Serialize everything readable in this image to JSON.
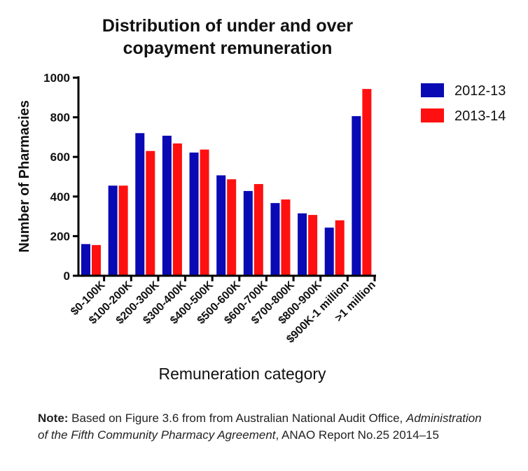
{
  "chart_data": {
    "type": "bar",
    "title_line1": "Distribution of under and over",
    "title_line2": "copayment remuneration",
    "xlabel": "Remuneration category",
    "ylabel": "Number of Pharmacies",
    "ylim": [
      0,
      1000
    ],
    "yticks": [
      "0",
      "200",
      "400",
      "600",
      "800",
      "1000"
    ],
    "categories": [
      "$0-100K",
      "$100-200K",
      "$200-300K",
      "$300-400K",
      "$400-500K",
      "$500-600K",
      "$600-700K",
      "$700-800K",
      "$800-900K",
      "$900K-1 million",
      ">1 million"
    ],
    "series": [
      {
        "name": "2012-13",
        "color": "#0a0ab4",
        "values": [
          160,
          455,
          720,
          707,
          622,
          507,
          428,
          367,
          315,
          243,
          806
        ]
      },
      {
        "name": "2013-14",
        "color": "#ff1010",
        "values": [
          155,
          455,
          630,
          668,
          637,
          487,
          463,
          385,
          307,
          280,
          943
        ]
      }
    ],
    "legend_position": "top-right",
    "grid": false
  },
  "note": {
    "bold": "Note:",
    "text1": " Based on Figure 3.6 from from Australian National Audit Office, ",
    "italic": "Administration of the Fifth Community Pharmacy Agreement",
    "text2": ", ANAO Report No.25 2014–15"
  }
}
